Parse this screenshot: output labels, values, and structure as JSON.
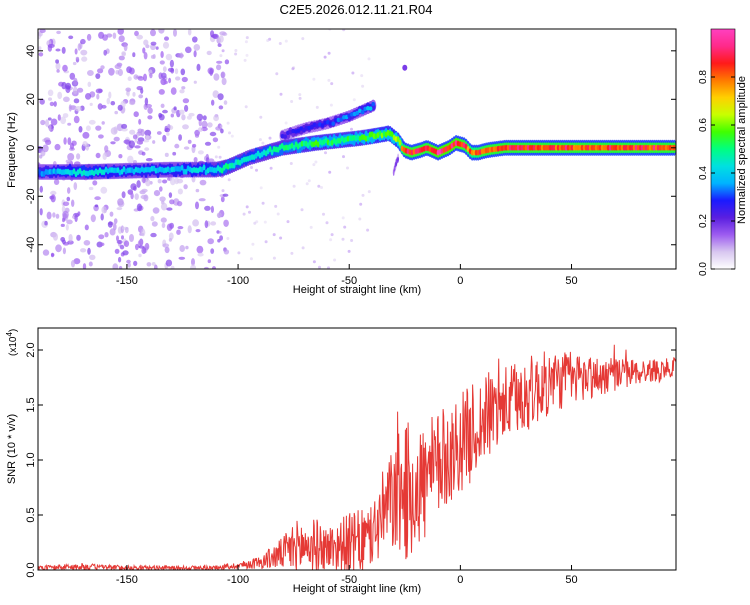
{
  "title": "C2E5.2026.012.11.21.R04",
  "colors": {
    "snr_line": "#e53935",
    "axis": "#000000",
    "colormap": [
      "#ffffff",
      "#d8c7f0",
      "#9d5cf0",
      "#5a1fe0",
      "#1a1aff",
      "#00b3ff",
      "#00e0e0",
      "#00ff80",
      "#40ff00",
      "#c8ff00",
      "#ffd000",
      "#ff7a00",
      "#ff1a1a",
      "#ff2a8a",
      "#ff40c0"
    ]
  },
  "chart_data": [
    {
      "type": "heatmap",
      "title": "C2E5.2026.012.11.21.R04",
      "xlabel": "Height of straight line (km)",
      "ylabel": "Frequency (Hz)",
      "xlim": [
        -190,
        97
      ],
      "ylim": [
        -50,
        49
      ],
      "x_ticks": [
        -150,
        -100,
        -50,
        0,
        50
      ],
      "x_tick_labels": [
        "-150",
        "-100",
        "-50",
        "0",
        "50"
      ],
      "y_ticks": [
        -40,
        -20,
        0,
        20,
        40
      ],
      "y_tick_labels": [
        "-40",
        "-20",
        "0",
        "20",
        "40"
      ],
      "colorbar": {
        "label": "Normalized spectral amplitude",
        "range": [
          0,
          1
        ],
        "ticks": [
          0.0,
          0.2,
          0.4,
          0.6,
          0.8
        ],
        "tick_labels": [
          "0.0",
          "0.2",
          "0.4",
          "0.6",
          "0.8"
        ]
      },
      "ridge": {
        "x": [
          -190,
          -170,
          -150,
          -130,
          -110,
          -105,
          -95,
          -80,
          -65,
          -55,
          -45,
          -38,
          -32,
          -28,
          -25,
          -22,
          -18,
          -15,
          -10,
          -5,
          -2,
          2,
          5,
          8,
          12,
          20,
          40,
          60,
          80,
          97
        ],
        "freq": [
          -10,
          -10,
          -9.5,
          -9,
          -9,
          -8,
          -4,
          0,
          2,
          3,
          4,
          5,
          6,
          3,
          -1,
          -2,
          -1,
          0,
          -2,
          0,
          2,
          1,
          -2,
          -2,
          -1,
          0,
          0,
          0,
          0,
          0
        ],
        "amplitude": [
          0.35,
          0.45,
          0.4,
          0.4,
          0.45,
          0.5,
          0.45,
          0.5,
          0.55,
          0.55,
          0.55,
          0.6,
          0.6,
          0.65,
          0.9,
          0.9,
          0.9,
          0.9,
          0.95,
          0.95,
          0.95,
          0.9,
          0.8,
          0.85,
          0.9,
          0.9,
          0.9,
          0.9,
          0.9,
          0.9
        ]
      },
      "upper_branch": {
        "x": [
          -80,
          -70,
          -60,
          -50,
          -45,
          -40,
          -38
        ],
        "freq": [
          5,
          8,
          10,
          13,
          15,
          17,
          18
        ],
        "amplitude": [
          0.25,
          0.3,
          0.3,
          0.35,
          0.35,
          0.4,
          0.3
        ]
      },
      "lower_branch": {
        "x": [
          -28,
          -29,
          -30
        ],
        "freq": [
          -4,
          -7,
          -10
        ],
        "amplitude": [
          0.2,
          0.2,
          0.15
        ]
      },
      "isolated_points": [
        {
          "x": -25,
          "freq": 33
        }
      ]
    },
    {
      "type": "line",
      "xlabel": "Height of straight line (km)",
      "ylabel": "SNR (10 * v/v)",
      "scale_label": "(x10",
      "scale_exponent": "4",
      "scale_close": ")",
      "xlim": [
        -190,
        97
      ],
      "ylim": [
        0,
        2.2
      ],
      "x_ticks": [
        -150,
        -100,
        -50,
        0,
        50
      ],
      "x_tick_labels": [
        "-150",
        "-100",
        "-50",
        "0",
        "50"
      ],
      "y_ticks": [
        0,
        0.5,
        1.0,
        1.5,
        2.0
      ],
      "y_tick_labels": [
        "0.0",
        "0.5",
        "1.0",
        "1.5",
        "2.0"
      ],
      "series": [
        {
          "name": "SNR",
          "envelope": {
            "x": [
              -190,
              -170,
              -150,
              -130,
              -110,
              -100,
              -90,
              -80,
              -75,
              -70,
              -65,
              -60,
              -55,
              -50,
              -45,
              -40,
              -35,
              -30,
              -25,
              -20,
              -15,
              -10,
              -5,
              0,
              5,
              10,
              15,
              20,
              25,
              30,
              40,
              50,
              60,
              70,
              80,
              90,
              97
            ],
            "mean": [
              0.02,
              0.03,
              0.02,
              0.02,
              0.02,
              0.04,
              0.07,
              0.15,
              0.2,
              0.22,
              0.22,
              0.2,
              0.22,
              0.22,
              0.25,
              0.3,
              0.5,
              0.65,
              0.7,
              0.75,
              0.8,
              0.95,
              1.05,
              1.15,
              1.25,
              1.35,
              1.45,
              1.5,
              1.55,
              1.6,
              1.7,
              1.75,
              1.75,
              1.78,
              1.8,
              1.82,
              1.85
            ],
            "spread": [
              0.02,
              0.03,
              0.02,
              0.02,
              0.02,
              0.03,
              0.06,
              0.15,
              0.25,
              0.25,
              0.25,
              0.2,
              0.25,
              0.3,
              0.3,
              0.3,
              0.4,
              0.5,
              0.65,
              0.6,
              0.55,
              0.5,
              0.45,
              0.45,
              0.45,
              0.4,
              0.4,
              0.35,
              0.35,
              0.35,
              0.3,
              0.25,
              0.2,
              0.15,
              0.12,
              0.1,
              0.08
            ]
          }
        }
      ]
    }
  ]
}
